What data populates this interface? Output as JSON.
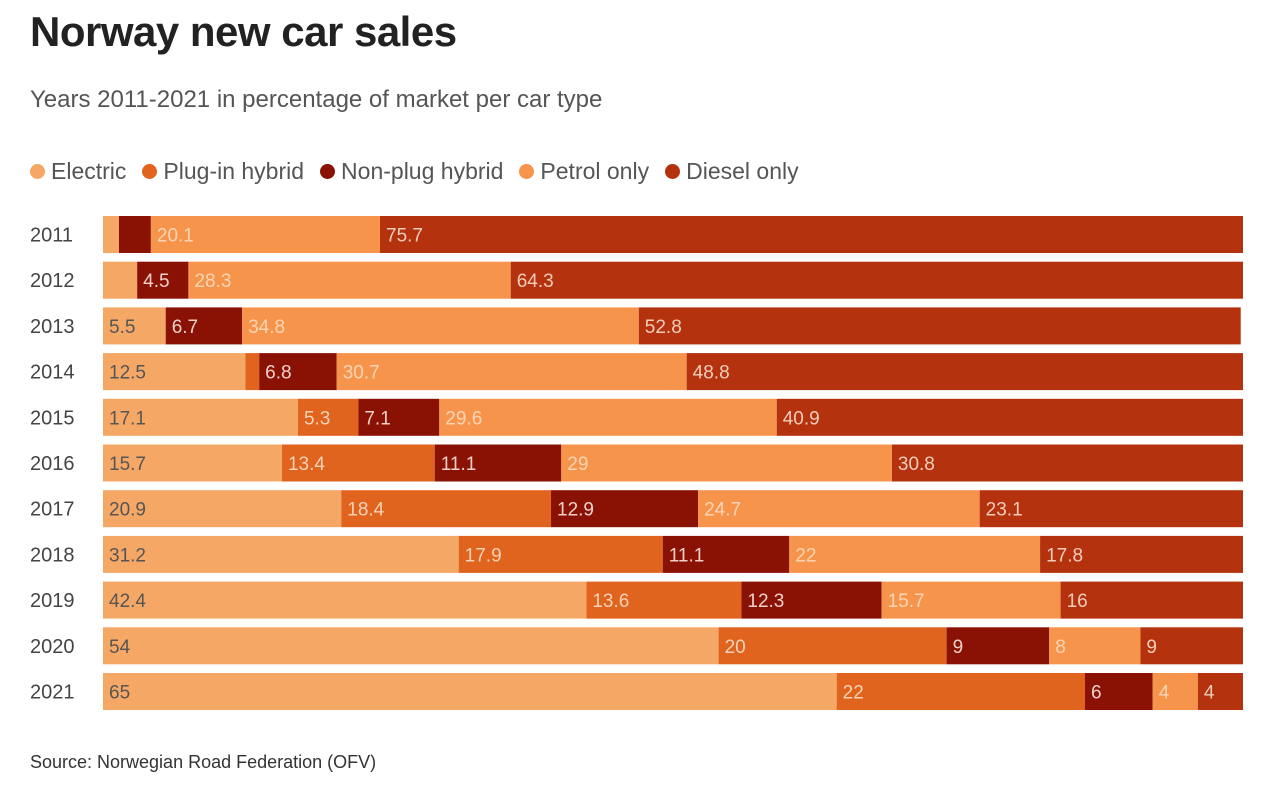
{
  "title": "Norway new car sales",
  "subtitle": "Years 2011-2021 in percentage of market per car type",
  "source": "Source: Norwegian Road Federation (OFV)",
  "chart_data": {
    "type": "bar",
    "orientation": "horizontal",
    "stacked": true,
    "legend_position": "top-left",
    "categories": [
      "2011",
      "2012",
      "2013",
      "2014",
      "2015",
      "2016",
      "2017",
      "2018",
      "2019",
      "2020",
      "2021"
    ],
    "series": [
      {
        "name": "Electric",
        "color": "#f5a866",
        "label_color": "#555555",
        "values": [
          1.4,
          3.0,
          5.5,
          12.5,
          17.1,
          15.7,
          20.9,
          31.2,
          42.4,
          54,
          65
        ],
        "labels": [
          "",
          "",
          "5.5",
          "12.5",
          "17.1",
          "15.7",
          "20.9",
          "31.2",
          "42.4",
          "54",
          "65"
        ]
      },
      {
        "name": "Plug-in hybrid",
        "color": "#e0631e",
        "label_color": "#f6d3b8",
        "values": [
          0,
          0,
          0,
          1.2,
          5.3,
          13.4,
          18.4,
          17.9,
          13.6,
          20,
          22
        ],
        "labels": [
          "",
          "",
          "",
          "",
          "5.3",
          "13.4",
          "18.4",
          "17.9",
          "13.6",
          "20",
          "22"
        ]
      },
      {
        "name": "Non-plug hybrid",
        "color": "#8a1205",
        "label_color": "#f0d0c8",
        "values": [
          2.8,
          4.5,
          6.7,
          6.8,
          7.1,
          11.1,
          12.9,
          11.1,
          12.3,
          9,
          6
        ],
        "labels": [
          "",
          "4.5",
          "6.7",
          "6.8",
          "7.1",
          "11.1",
          "12.9",
          "11.1",
          "12.3",
          "9",
          "6"
        ]
      },
      {
        "name": "Petrol only",
        "color": "#f7944c",
        "label_color": "#fbd5b6",
        "values": [
          20.1,
          28.3,
          34.8,
          30.7,
          29.6,
          29,
          24.7,
          22,
          15.7,
          8,
          4
        ],
        "labels": [
          "20.1",
          "28.3",
          "34.8",
          "30.7",
          "29.6",
          "29",
          "24.7",
          "22",
          "15.7",
          "8",
          "4"
        ]
      },
      {
        "name": "Diesel only",
        "color": "#b4320d",
        "label_color": "#f3cdbc",
        "values": [
          75.7,
          64.3,
          52.8,
          48.8,
          40.9,
          30.8,
          23.1,
          17.8,
          16,
          9,
          4
        ],
        "labels": [
          "75.7",
          "64.3",
          "52.8",
          "48.8",
          "40.9",
          "30.8",
          "23.1",
          "17.8",
          "16",
          "9",
          "4"
        ]
      }
    ]
  }
}
